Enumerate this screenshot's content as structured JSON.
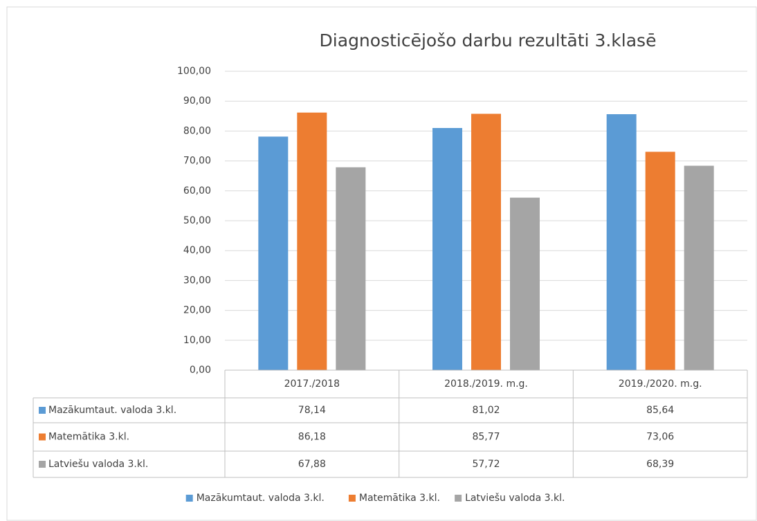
{
  "chart_data": {
    "type": "bar",
    "title": "Diagnosticējošo darbu rezultāti 3.klasē",
    "categories": [
      "2017./2018",
      "2018./2019. m.g.",
      "2019./2020. m.g."
    ],
    "series": [
      {
        "name": "Mazākumtaut. valoda  3.kl.",
        "color": "#5b9bd5",
        "values": [
          78.14,
          81.02,
          85.64
        ],
        "value_labels": [
          "78,14",
          "81,02",
          "85,64"
        ]
      },
      {
        "name": "Matemātika 3.kl.",
        "color": "#ed7d31",
        "values": [
          86.18,
          85.77,
          73.06
        ],
        "value_labels": [
          "86,18",
          "85,77",
          "73,06"
        ]
      },
      {
        "name": "Latviešu valoda 3.kl.",
        "color": "#a5a5a5",
        "values": [
          67.88,
          57.72,
          68.39
        ],
        "value_labels": [
          "67,88",
          "57,72",
          "68,39"
        ]
      }
    ],
    "ylim": [
      0,
      100
    ],
    "yticks": [
      {
        "value": 0,
        "label": "0,00"
      },
      {
        "value": 10,
        "label": "10,00"
      },
      {
        "value": 20,
        "label": "20,00"
      },
      {
        "value": 30,
        "label": "30,00"
      },
      {
        "value": 40,
        "label": "40,00"
      },
      {
        "value": 50,
        "label": "50,00"
      },
      {
        "value": 60,
        "label": "60,00"
      },
      {
        "value": 70,
        "label": "70,00"
      },
      {
        "value": 80,
        "label": "80,00"
      },
      {
        "value": 90,
        "label": "90,00"
      },
      {
        "value": 100,
        "label": "100,00"
      }
    ],
    "grid": true,
    "legend": "bottom",
    "data_table": true
  }
}
